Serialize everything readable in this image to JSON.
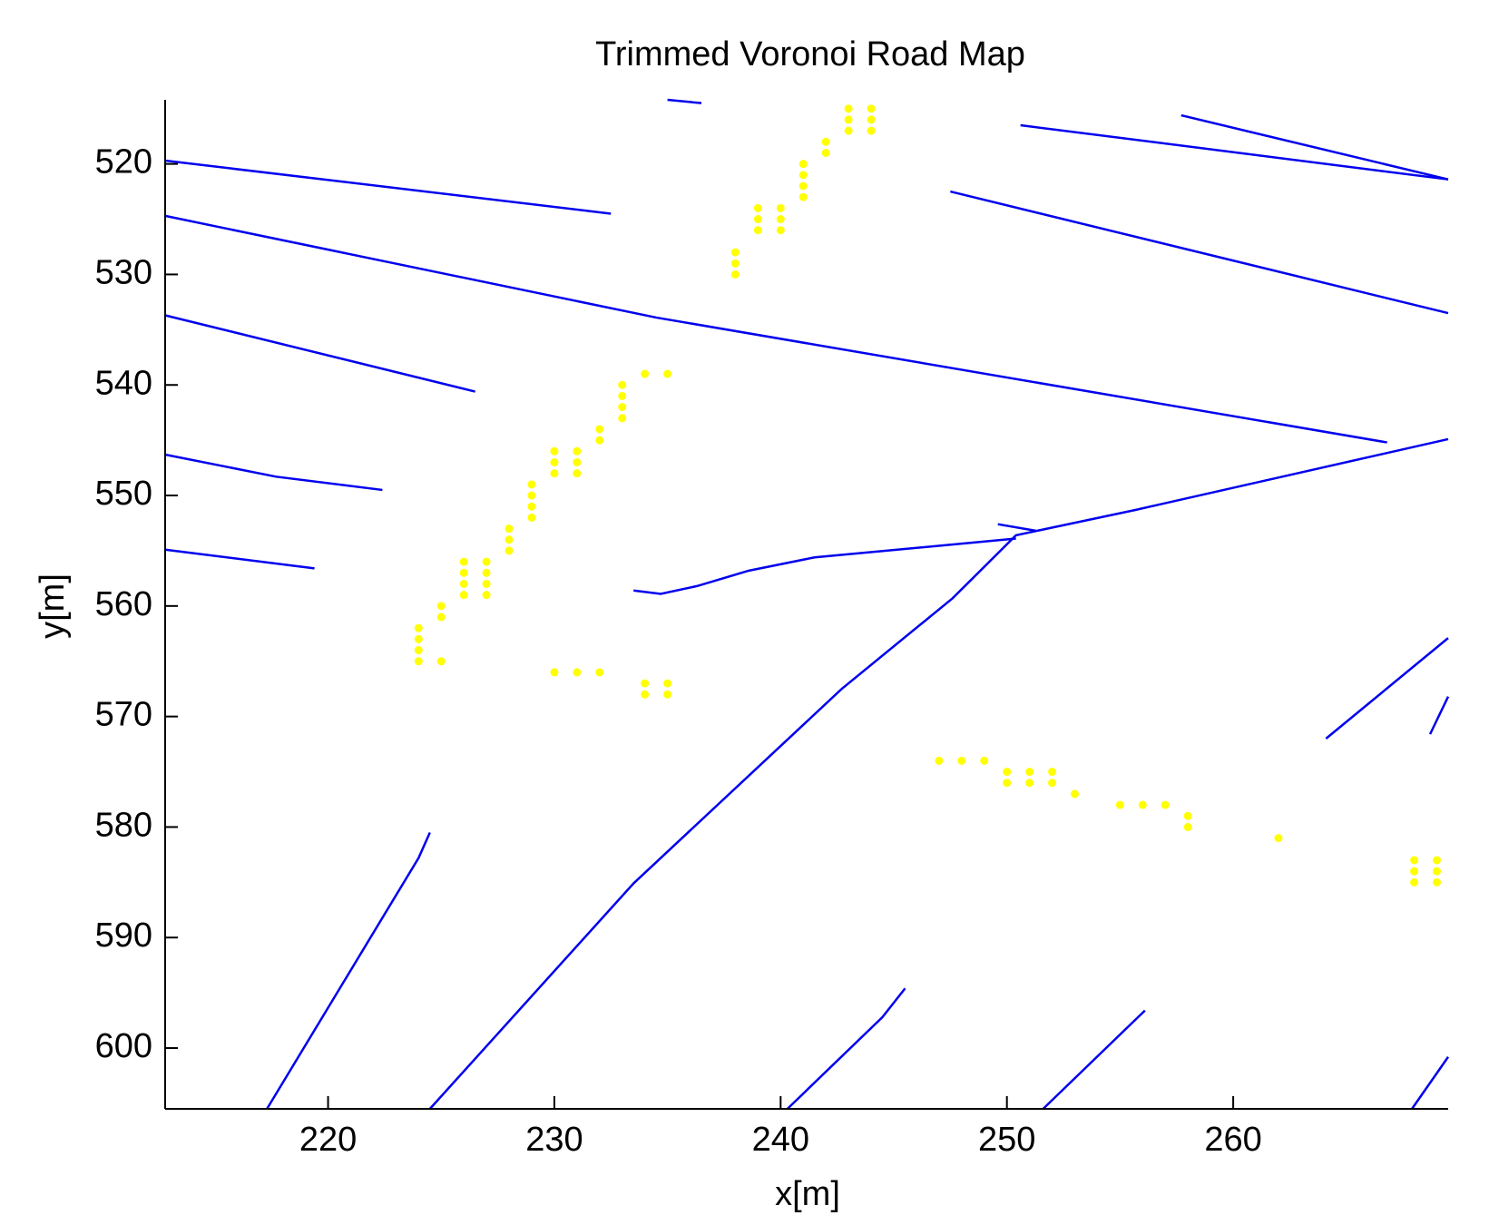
{
  "chart_data": {
    "type": "line",
    "title": "Trimmed Voronoi Road Map",
    "x_label": "x[m]",
    "y_label": "y[m]",
    "xlim": [
      212.8,
      269.5
    ],
    "ylim": [
      514.2,
      605.5
    ],
    "y_inverted": true,
    "xticks": [
      220,
      230,
      240,
      250,
      260
    ],
    "yticks": [
      520,
      530,
      540,
      550,
      560,
      570,
      580,
      590,
      600
    ],
    "line_color": "#0000ee",
    "point_color": "#ffff00",
    "segments": [
      {
        "x": [
          212.8,
          232.5
        ],
        "y": [
          519.7,
          524.5
        ]
      },
      {
        "x": [
          212.8,
          234.5,
          266.8
        ],
        "y": [
          524.7,
          533.9,
          545.2
        ]
      },
      {
        "x": [
          212.8,
          226.5
        ],
        "y": [
          533.7,
          540.6
        ]
      },
      {
        "x": [
          212.8,
          217.7,
          222.4
        ],
        "y": [
          546.3,
          548.3,
          549.5
        ]
      },
      {
        "x": [
          212.8,
          219.4
        ],
        "y": [
          554.9,
          556.6
        ]
      },
      {
        "x": [
          235.0,
          236.5
        ],
        "y": [
          514.2,
          514.5
        ]
      },
      {
        "x": [
          250.6,
          269.5
        ],
        "y": [
          516.5,
          521.4
        ]
      },
      {
        "x": [
          257.7,
          269.5
        ],
        "y": [
          515.6,
          521.4
        ]
      },
      {
        "x": [
          247.5,
          269.5
        ],
        "y": [
          522.5,
          533.5
        ]
      },
      {
        "x": [
          224.5,
          233.5,
          242.7,
          247.6,
          250.4,
          255.7,
          269.5
        ],
        "y": [
          605.5,
          585.1,
          567.5,
          559.3,
          553.6,
          551.3,
          544.9
        ]
      },
      {
        "x": [
          233.5,
          234.7,
          236.3,
          238.6,
          241.5,
          250.4
        ],
        "y": [
          558.6,
          558.9,
          558.2,
          556.8,
          555.6,
          553.9
        ]
      },
      {
        "x": [
          249.6,
          251.3
        ],
        "y": [
          552.6,
          553.2
        ]
      },
      {
        "x": [
          217.3,
          224.0,
          224.5
        ],
        "y": [
          605.5,
          582.8,
          580.5
        ]
      },
      {
        "x": [
          240.3,
          244.5,
          245.5
        ],
        "y": [
          605.5,
          597.2,
          594.6
        ]
      },
      {
        "x": [
          251.6,
          256.1
        ],
        "y": [
          605.5,
          596.6
        ]
      },
      {
        "x": [
          264.1,
          269.5
        ],
        "y": [
          572.0,
          562.9
        ]
      },
      {
        "x": [
          268.7,
          269.5
        ],
        "y": [
          571.6,
          568.2
        ]
      },
      {
        "x": [
          267.9,
          269.5
        ],
        "y": [
          605.5,
          600.8
        ]
      }
    ],
    "points": {
      "x": [
        243,
        243,
        243,
        244,
        244,
        244,
        242,
        242,
        241,
        241,
        241,
        241,
        239,
        239,
        239,
        240,
        240,
        240,
        238,
        238,
        238,
        234,
        235,
        233,
        233,
        233,
        233,
        232,
        232,
        230,
        230,
        230,
        231,
        231,
        231,
        229,
        229,
        229,
        229,
        228,
        228,
        228,
        226,
        226,
        226,
        226,
        227,
        227,
        227,
        227,
        225,
        225,
        224,
        224,
        224,
        224,
        225,
        230,
        231,
        232,
        234,
        234,
        235,
        235,
        247,
        248,
        249,
        250,
        250,
        251,
        251,
        252,
        252,
        253,
        255,
        256,
        257,
        258,
        258,
        262,
        268,
        268,
        268,
        269,
        269,
        269
      ],
      "y": [
        515,
        516,
        517,
        515,
        516,
        517,
        518,
        519,
        520,
        521,
        522,
        523,
        524,
        525,
        526,
        524,
        525,
        526,
        528,
        529,
        530,
        539,
        539,
        540,
        541,
        542,
        543,
        544,
        545,
        546,
        547,
        548,
        546,
        547,
        548,
        549,
        550,
        551,
        552,
        553,
        554,
        555,
        556,
        557,
        558,
        559,
        556,
        557,
        558,
        559,
        560,
        561,
        562,
        563,
        564,
        565,
        565,
        566,
        566,
        566,
        567,
        568,
        567,
        568,
        574,
        574,
        574,
        575,
        576,
        575,
        576,
        575,
        576,
        577,
        578,
        578,
        578,
        579,
        580,
        581,
        583,
        584,
        585,
        583,
        584,
        585
      ]
    }
  }
}
